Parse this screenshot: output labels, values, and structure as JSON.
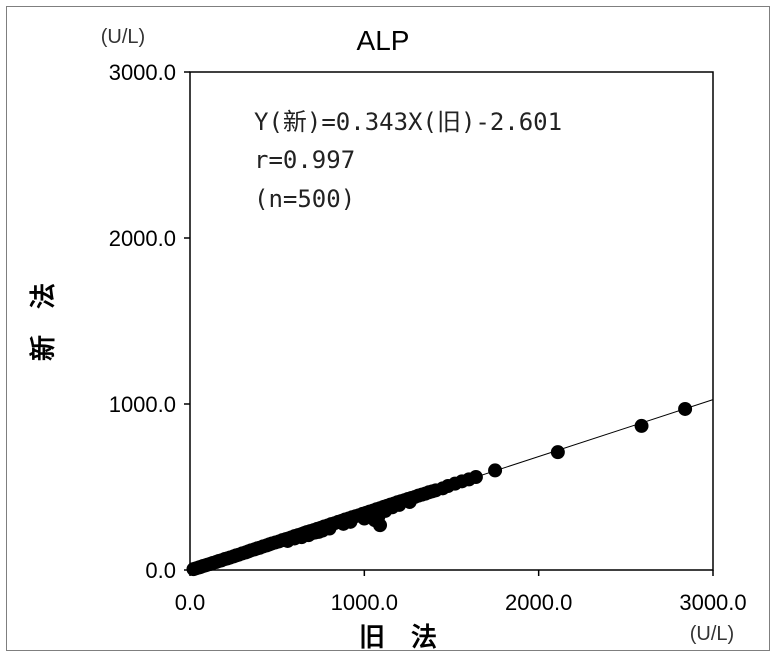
{
  "chart_data": {
    "type": "scatter",
    "title": "ALP",
    "xlabel": "旧　法",
    "ylabel": "新　法",
    "x_unit": "(U/L)",
    "y_unit": "(U/L)",
    "xlim": [
      0,
      3000
    ],
    "ylim": [
      0,
      3000
    ],
    "x_ticks": [
      "0.0",
      "1000.0",
      "2000.0",
      "3000.0"
    ],
    "y_ticks": [
      "0.0",
      "1000.0",
      "2000.0",
      "3000.0"
    ],
    "grid": false,
    "annotations": [
      "Y(新)=0.343X(旧)-2.601",
      "r=0.997",
      "(n=500)"
    ],
    "regression": {
      "slope": 0.343,
      "intercept": -2.601
    },
    "points": [
      [
        20,
        5
      ],
      [
        35,
        10
      ],
      [
        50,
        15
      ],
      [
        60,
        18
      ],
      [
        75,
        24
      ],
      [
        90,
        28
      ],
      [
        100,
        32
      ],
      [
        115,
        36
      ],
      [
        130,
        42
      ],
      [
        150,
        48
      ],
      [
        165,
        54
      ],
      [
        180,
        58
      ],
      [
        200,
        66
      ],
      [
        215,
        70
      ],
      [
        230,
        75
      ],
      [
        250,
        82
      ],
      [
        265,
        88
      ],
      [
        280,
        92
      ],
      [
        300,
        100
      ],
      [
        320,
        106
      ],
      [
        335,
        112
      ],
      [
        350,
        118
      ],
      [
        370,
        124
      ],
      [
        385,
        130
      ],
      [
        400,
        134
      ],
      [
        420,
        142
      ],
      [
        440,
        148
      ],
      [
        455,
        154
      ],
      [
        470,
        160
      ],
      [
        490,
        166
      ],
      [
        510,
        172
      ],
      [
        530,
        180
      ],
      [
        550,
        186
      ],
      [
        565,
        190
      ],
      [
        580,
        196
      ],
      [
        600,
        204
      ],
      [
        620,
        210
      ],
      [
        640,
        216
      ],
      [
        655,
        222
      ],
      [
        670,
        228
      ],
      [
        690,
        234
      ],
      [
        710,
        240
      ],
      [
        730,
        248
      ],
      [
        750,
        254
      ],
      [
        770,
        262
      ],
      [
        790,
        268
      ],
      [
        810,
        276
      ],
      [
        830,
        282
      ],
      [
        850,
        290
      ],
      [
        870,
        296
      ],
      [
        890,
        304
      ],
      [
        910,
        310
      ],
      [
        930,
        318
      ],
      [
        950,
        324
      ],
      [
        970,
        330
      ],
      [
        990,
        338
      ],
      [
        1010,
        344
      ],
      [
        1030,
        352
      ],
      [
        1050,
        358
      ],
      [
        1070,
        366
      ],
      [
        1090,
        372
      ],
      [
        1110,
        380
      ],
      [
        1130,
        386
      ],
      [
        1150,
        394
      ],
      [
        1170,
        400
      ],
      [
        1190,
        408
      ],
      [
        1210,
        414
      ],
      [
        1230,
        420
      ],
      [
        1250,
        428
      ],
      [
        1270,
        434
      ],
      [
        1290,
        440
      ],
      [
        1310,
        448
      ],
      [
        1330,
        454
      ],
      [
        1350,
        460
      ],
      [
        1370,
        468
      ],
      [
        1390,
        474
      ],
      [
        1410,
        480
      ],
      [
        1450,
        492
      ],
      [
        1480,
        506
      ],
      [
        1520,
        520
      ],
      [
        1560,
        534
      ],
      [
        1600,
        546
      ],
      [
        1640,
        560
      ],
      [
        1750,
        600
      ],
      [
        2110,
        710
      ],
      [
        2590,
        868
      ],
      [
        2840,
        970
      ],
      [
        560,
        175
      ],
      [
        600,
        190
      ],
      [
        640,
        198
      ],
      [
        680,
        210
      ],
      [
        700,
        222
      ],
      [
        720,
        226
      ],
      [
        740,
        230
      ],
      [
        760,
        238
      ],
      [
        800,
        250
      ],
      [
        880,
        278
      ],
      [
        920,
        290
      ],
      [
        1000,
        310
      ],
      [
        1060,
        300
      ],
      [
        1080,
        320
      ],
      [
        1090,
        270
      ],
      [
        1100,
        360
      ],
      [
        1120,
        356
      ],
      [
        1160,
        378
      ],
      [
        1200,
        392
      ],
      [
        1260,
        410
      ]
    ]
  }
}
